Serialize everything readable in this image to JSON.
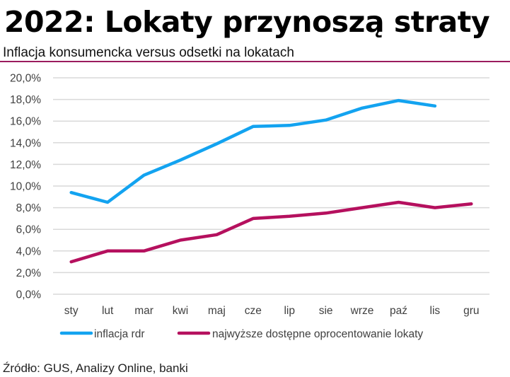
{
  "header": {
    "title": "2022: Lokaty przynoszą straty",
    "subtitle": "Inflacja konsumencka versus odsetki na lokatach"
  },
  "footer": {
    "source": "Źródło: GUS, Analizy Online, banki"
  },
  "colors": {
    "inflation": "#13a3f0",
    "deposit": "#b5105e",
    "grid": "#d9d9d9",
    "rule": "#9b1c5e"
  },
  "chart_data": {
    "type": "line",
    "title": "2022: Lokaty przynoszą straty",
    "subtitle": "Inflacja konsumencka versus odsetki na lokatach",
    "xlabel": "",
    "ylabel": "",
    "categories": [
      "sty",
      "lut",
      "mar",
      "kwi",
      "maj",
      "cze",
      "lip",
      "sie",
      "wrze",
      "paź",
      "lis",
      "gru"
    ],
    "yticks": [
      "0,0%",
      "2,0%",
      "4,0%",
      "6,0%",
      "8,0%",
      "10,0%",
      "12,0%",
      "14,0%",
      "16,0%",
      "18,0%",
      "20,0%"
    ],
    "ylim": [
      0,
      20
    ],
    "grid": true,
    "legend_position": "bottom",
    "series": [
      {
        "name": "inflacja rdr",
        "color": "#13a3f0",
        "values": [
          9.4,
          8.5,
          11.0,
          12.4,
          13.9,
          15.5,
          15.6,
          16.1,
          17.2,
          17.9,
          17.4,
          null
        ]
      },
      {
        "name": "najwyższe dostępne oprocentowanie lokaty",
        "color": "#b5105e",
        "values": [
          3.0,
          4.0,
          4.0,
          5.0,
          5.5,
          7.0,
          7.2,
          7.5,
          8.0,
          8.5,
          8.0,
          8.35
        ]
      }
    ]
  }
}
